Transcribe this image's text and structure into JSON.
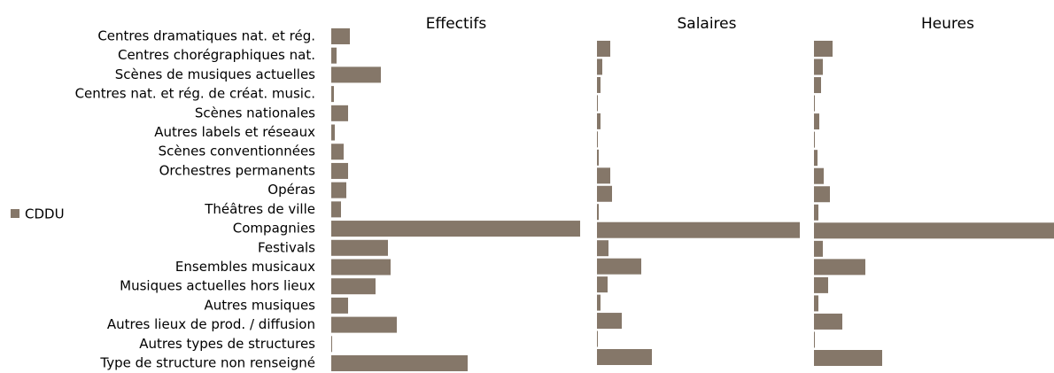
{
  "chart_data": {
    "type": "bar",
    "categories": [
      "Centres dramatiques nat. et rég.",
      "Centres chorégraphiques nat.",
      "Scènes de musiques actuelles",
      "Centres nat. et rég. de créat. music.",
      "Scènes nationales",
      "Autres labels et réseaux",
      "Scènes conventionnées",
      "Orchestres permanents",
      "Opéras",
      "Théâtres de ville",
      "Compagnies",
      "Festivals",
      "Ensembles musicaux",
      "Musiques actuelles hors lieux",
      "Autres musiques",
      "Autres lieux de prod. / diffusion",
      "Autres types de structures",
      "Type de structure non renseigné"
    ],
    "series": [
      {
        "name": "CDDU",
        "color": "#857769"
      }
    ],
    "panels": [
      {
        "title": "Effectifs",
        "xlim": [
          0,
          28.1
        ],
        "values": [
          2.1,
          0.6,
          5.6,
          0.3,
          1.9,
          0.4,
          1.4,
          1.9,
          1.7,
          1.1,
          28.1,
          6.4,
          6.7,
          5.0,
          1.9,
          7.4,
          0.1,
          15.4
        ]
      },
      {
        "title": "Salaires",
        "xlim": [
          0,
          22.9
        ],
        "values": [
          1.5,
          0.6,
          0.4,
          0.1,
          0.4,
          0.1,
          0.2,
          1.5,
          1.7,
          0.2,
          22.9,
          1.3,
          5.0,
          1.2,
          0.4,
          2.8,
          0.1,
          6.2
        ]
      },
      {
        "title": "Heures",
        "xlim": [
          0,
          27.1
        ],
        "values": [
          2.1,
          1.0,
          0.8,
          0.1,
          0.6,
          0.1,
          0.4,
          1.1,
          1.8,
          0.5,
          27.1,
          1.0,
          5.8,
          1.6,
          0.5,
          3.2,
          0.1,
          7.7
        ]
      }
    ]
  }
}
